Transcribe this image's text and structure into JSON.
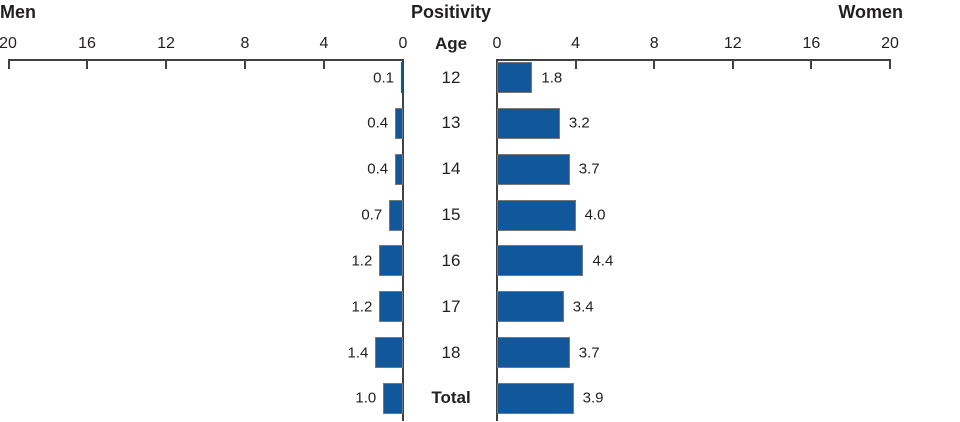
{
  "header": {
    "left": "Men",
    "center": "Positivity",
    "right": "Women"
  },
  "chart_data": {
    "type": "bar",
    "subtype": "population-pyramid",
    "title": "Positivity",
    "ylabel": "Age",
    "categories": [
      "12",
      "13",
      "14",
      "15",
      "16",
      "17",
      "18",
      "Total"
    ],
    "series": [
      {
        "name": "Men",
        "side": "left",
        "values": [
          0.1,
          0.4,
          0.4,
          0.7,
          1.2,
          1.2,
          1.4,
          1.0
        ]
      },
      {
        "name": "Women",
        "side": "right",
        "values": [
          1.8,
          3.2,
          3.7,
          4.0,
          4.4,
          3.4,
          3.7,
          3.9
        ]
      }
    ],
    "x_ticks_left": [
      20,
      16,
      12,
      8,
      4,
      0
    ],
    "x_ticks_right": [
      0,
      4,
      8,
      12,
      16,
      20
    ],
    "xlim": [
      0,
      20
    ],
    "value_label_decimals": 1,
    "grid": false,
    "legend_position": "none"
  },
  "colors": {
    "bar_fill": "#10579C",
    "bar_border": "#77787B",
    "axis": "#414042",
    "text": "#231F20"
  }
}
